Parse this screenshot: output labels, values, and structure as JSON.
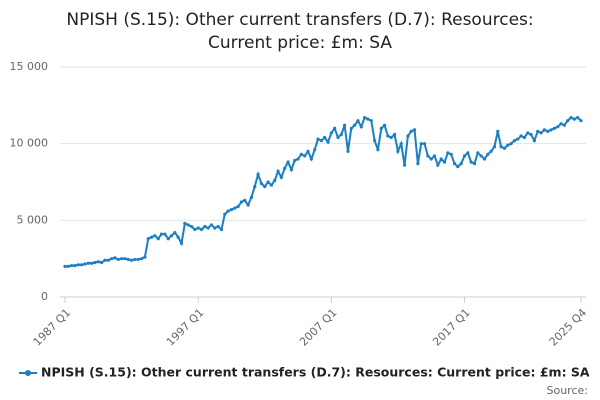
{
  "chart_data": {
    "type": "line",
    "title": [
      "NPISH (S.15): Other current transfers (D.7): Resources:",
      "Current price: £m: SA"
    ],
    "source": "Source:",
    "categories": [
      "1987 Q1",
      null,
      null,
      null,
      null,
      null,
      null,
      null,
      null,
      null,
      null,
      null,
      null,
      null,
      null,
      null,
      null,
      null,
      null,
      null,
      null,
      null,
      null,
      null,
      null,
      null,
      null,
      null,
      null,
      null,
      null,
      null,
      null,
      null,
      null,
      null,
      null,
      null,
      null,
      null,
      "1997 Q1",
      null,
      null,
      null,
      null,
      null,
      null,
      null,
      null,
      null,
      null,
      null,
      null,
      null,
      null,
      null,
      null,
      null,
      null,
      null,
      null,
      null,
      null,
      null,
      null,
      null,
      null,
      null,
      null,
      null,
      null,
      null,
      null,
      null,
      null,
      null,
      null,
      null,
      null,
      null,
      "2007 Q1",
      null,
      null,
      null,
      null,
      null,
      null,
      null,
      null,
      null,
      null,
      null,
      null,
      null,
      null,
      null,
      null,
      null,
      null,
      null,
      null,
      null,
      null,
      null,
      null,
      null,
      null,
      null,
      null,
      null,
      null,
      null,
      null,
      null,
      null,
      null,
      null,
      null,
      null,
      null,
      "2017 Q1",
      null,
      null,
      null,
      null,
      null,
      null,
      null,
      null,
      null,
      null,
      null,
      null,
      null,
      null,
      null,
      null,
      null,
      null,
      null,
      null,
      null,
      null,
      null,
      null,
      null,
      null,
      null,
      null,
      null,
      null,
      null,
      null,
      null,
      null,
      "2025 Q4"
    ],
    "series": [
      {
        "name": "NPISH (S.15): Other current transfers (D.7): Resources: Current price: £m: SA",
        "color": "#1b7fc4",
        "values": [
          2000,
          2000,
          2050,
          2050,
          2100,
          2100,
          2150,
          2200,
          2200,
          2250,
          2300,
          2250,
          2400,
          2400,
          2500,
          2550,
          2450,
          2500,
          2500,
          2450,
          2400,
          2450,
          2450,
          2500,
          2600,
          3800,
          3900,
          4000,
          3800,
          4100,
          4100,
          3800,
          4000,
          4200,
          3900,
          3500,
          4800,
          4700,
          4600,
          4400,
          4500,
          4400,
          4600,
          4500,
          4700,
          4500,
          4600,
          4400,
          5400,
          5600,
          5700,
          5800,
          5900,
          6200,
          6300,
          6000,
          6500,
          7200,
          8000,
          7400,
          7200,
          7500,
          7300,
          7600,
          8200,
          7800,
          8400,
          8800,
          8300,
          8900,
          9000,
          9300,
          9200,
          9500,
          9000,
          9600,
          10300,
          10200,
          10400,
          10100,
          10700,
          11000,
          10400,
          10600,
          11200,
          9500,
          11000,
          11200,
          11500,
          11100,
          11700,
          11600,
          11500,
          10200,
          9600,
          11000,
          11200,
          10500,
          10400,
          10600,
          9500,
          10000,
          8600,
          10500,
          10800,
          10900,
          8700,
          10000,
          10000,
          9200,
          9000,
          9200,
          8600,
          9000,
          8800,
          9400,
          9300,
          8700,
          8500,
          8700,
          9200,
          9400,
          8800,
          8700,
          9400,
          9200,
          9000,
          9300,
          9500,
          9800,
          10800,
          9800,
          9700,
          9900,
          10000,
          10200,
          10300,
          10500,
          10400,
          10700,
          10600,
          10200,
          10800,
          10700,
          10900,
          10800,
          10900,
          11000,
          11100,
          11300,
          11200,
          11500,
          11700,
          11600,
          11700,
          11500
        ]
      }
    ],
    "ylim": [
      0,
      15000
    ],
    "yticks": [
      0,
      {
        "value": 5000,
        "label": "5 000"
      },
      {
        "value": 10000,
        "label": "10 000"
      },
      {
        "value": 15000,
        "label": "15 000"
      }
    ],
    "grid": true
  }
}
